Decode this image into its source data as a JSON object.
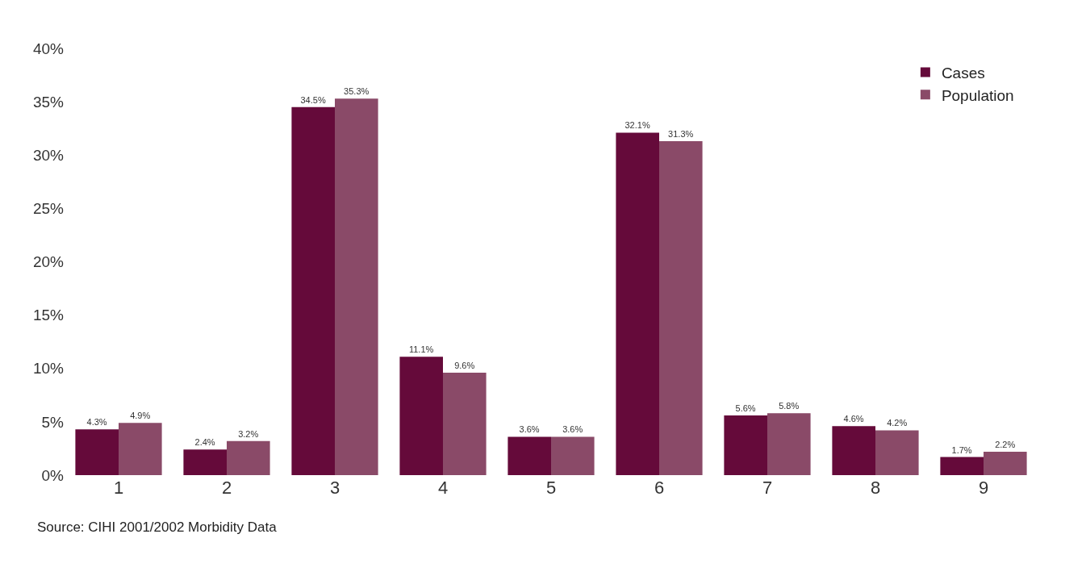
{
  "chart_data": {
    "type": "bar",
    "categories": [
      "1",
      "2",
      "3",
      "4",
      "5",
      "6",
      "7",
      "8",
      "9"
    ],
    "series": [
      {
        "name": "Cases",
        "color": "#650a3a",
        "values": [
          4.3,
          2.4,
          34.5,
          11.1,
          3.6,
          32.1,
          5.6,
          4.6,
          1.7
        ],
        "value_labels": [
          "4.3%",
          "2.4%",
          "34.5%",
          "11.1%",
          "3.6%",
          "32.1%",
          "5.6%",
          "4.6%",
          "1.7%"
        ]
      },
      {
        "name": "Population",
        "color": "#8a4a68",
        "values": [
          4.9,
          3.2,
          35.3,
          9.6,
          3.6,
          31.3,
          5.8,
          4.2,
          2.2
        ],
        "value_labels": [
          "4.9%",
          "3.2%",
          "35.3%",
          "9.6%",
          "3.6%",
          "31.3%",
          "5.8%",
          "4.2%",
          "2.2%"
        ]
      }
    ],
    "ylim": [
      0,
      40
    ],
    "yticks": [
      {
        "value": 0,
        "label": "0%"
      },
      {
        "value": 5,
        "label": "5%"
      },
      {
        "value": 10,
        "label": "10%"
      },
      {
        "value": 15,
        "label": "15%"
      },
      {
        "value": 20,
        "label": "20%"
      },
      {
        "value": 25,
        "label": "25%"
      },
      {
        "value": 30,
        "label": "30%"
      },
      {
        "value": 35,
        "label": "35%"
      },
      {
        "value": 40,
        "label": "40%"
      }
    ],
    "legend": "top right",
    "annotations": [
      "Source: CIHI 2001/2002 Morbidity Data"
    ]
  }
}
